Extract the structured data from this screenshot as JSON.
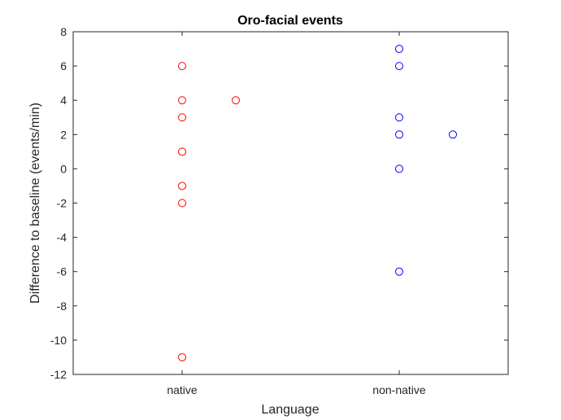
{
  "chart_data": {
    "type": "scatter",
    "title": "Oro-facial events",
    "xlabel": "Language",
    "ylabel": "Difference to baseline (events/min)",
    "categories": [
      "native",
      "non-native"
    ],
    "ylim": [
      -12,
      8
    ],
    "yticks": [
      -12,
      -10,
      -8,
      -6,
      -4,
      -2,
      0,
      2,
      4,
      6,
      8
    ],
    "yticklabels": [
      "-12",
      "-10",
      "-8",
      "-6",
      "-4",
      "-2",
      "0",
      "2",
      "4",
      "6",
      "8"
    ],
    "grid": false,
    "marker": "open-circle",
    "series": [
      {
        "category": "native",
        "color": "#ff0000",
        "points": [
          {
            "x": "native",
            "y": 6
          },
          {
            "x": "native",
            "y": 4
          },
          {
            "x": "native",
            "y": 3
          },
          {
            "x": "native",
            "y": 1
          },
          {
            "x": "native",
            "y": -1
          },
          {
            "x": "native",
            "y": -2
          },
          {
            "x": "native",
            "y": -11
          },
          {
            "x": "native",
            "y": 4,
            "jitter": true
          }
        ]
      },
      {
        "category": "non-native",
        "color": "#0000ff",
        "points": [
          {
            "x": "non-native",
            "y": 7
          },
          {
            "x": "non-native",
            "y": 6
          },
          {
            "x": "non-native",
            "y": 3
          },
          {
            "x": "non-native",
            "y": 2
          },
          {
            "x": "non-native",
            "y": 0
          },
          {
            "x": "non-native",
            "y": -6
          },
          {
            "x": "non-native",
            "y": 2,
            "jitter": true
          }
        ]
      }
    ]
  }
}
